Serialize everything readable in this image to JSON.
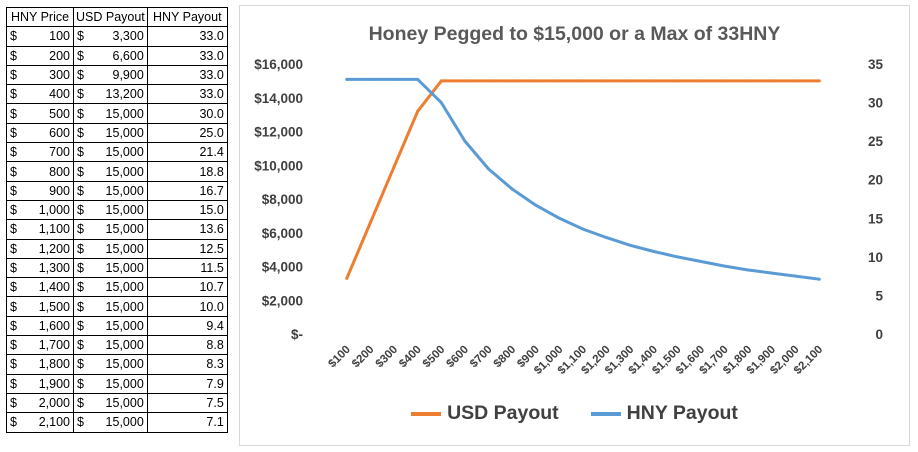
{
  "table": {
    "headers": [
      "HNY Price",
      "USD Payout",
      "HNY Payout"
    ],
    "currency_symbol": "$",
    "rows": [
      {
        "price": "100",
        "usd": "3,300",
        "hny": "33.0"
      },
      {
        "price": "200",
        "usd": "6,600",
        "hny": "33.0"
      },
      {
        "price": "300",
        "usd": "9,900",
        "hny": "33.0"
      },
      {
        "price": "400",
        "usd": "13,200",
        "hny": "33.0"
      },
      {
        "price": "500",
        "usd": "15,000",
        "hny": "30.0"
      },
      {
        "price": "600",
        "usd": "15,000",
        "hny": "25.0"
      },
      {
        "price": "700",
        "usd": "15,000",
        "hny": "21.4"
      },
      {
        "price": "800",
        "usd": "15,000",
        "hny": "18.8"
      },
      {
        "price": "900",
        "usd": "15,000",
        "hny": "16.7"
      },
      {
        "price": "1,000",
        "usd": "15,000",
        "hny": "15.0"
      },
      {
        "price": "1,100",
        "usd": "15,000",
        "hny": "13.6"
      },
      {
        "price": "1,200",
        "usd": "15,000",
        "hny": "12.5"
      },
      {
        "price": "1,300",
        "usd": "15,000",
        "hny": "11.5"
      },
      {
        "price": "1,400",
        "usd": "15,000",
        "hny": "10.7"
      },
      {
        "price": "1,500",
        "usd": "15,000",
        "hny": "10.0"
      },
      {
        "price": "1,600",
        "usd": "15,000",
        "hny": "9.4"
      },
      {
        "price": "1,700",
        "usd": "15,000",
        "hny": "8.8"
      },
      {
        "price": "1,800",
        "usd": "15,000",
        "hny": "8.3"
      },
      {
        "price": "1,900",
        "usd": "15,000",
        "hny": "7.9"
      },
      {
        "price": "2,000",
        "usd": "15,000",
        "hny": "7.5"
      },
      {
        "price": "2,100",
        "usd": "15,000",
        "hny": "7.1"
      }
    ]
  },
  "chart_data": {
    "type": "line",
    "title": "Honey Pegged to $15,000 or a Max of 33HNY",
    "categories": [
      "$100",
      "$200",
      "$300",
      "$400",
      "$500",
      "$600",
      "$700",
      "$800",
      "$900",
      "$1,000",
      "$1,100",
      "$1,200",
      "$1,300",
      "$1,400",
      "$1,500",
      "$1,600",
      "$1,700",
      "$1,800",
      "$1,900",
      "$2,000",
      "$2,100"
    ],
    "series": [
      {
        "name": "USD Payout",
        "axis": "left",
        "color": "#ed7d31",
        "values": [
          3300,
          6600,
          9900,
          13200,
          15000,
          15000,
          15000,
          15000,
          15000,
          15000,
          15000,
          15000,
          15000,
          15000,
          15000,
          15000,
          15000,
          15000,
          15000,
          15000,
          15000
        ]
      },
      {
        "name": "HNY Payout",
        "axis": "right",
        "color": "#5b9bd5",
        "values": [
          33.0,
          33.0,
          33.0,
          33.0,
          30.0,
          25.0,
          21.4,
          18.8,
          16.7,
          15.0,
          13.6,
          12.5,
          11.5,
          10.7,
          10.0,
          9.4,
          8.8,
          8.3,
          7.9,
          7.5,
          7.1
        ]
      }
    ],
    "y_left": {
      "min": 0,
      "max": 16000,
      "ticks": [
        {
          "v": 0,
          "label": "$-"
        },
        {
          "v": 2000,
          "label": "$2,000"
        },
        {
          "v": 4000,
          "label": "$4,000"
        },
        {
          "v": 6000,
          "label": "$6,000"
        },
        {
          "v": 8000,
          "label": "$8,000"
        },
        {
          "v": 10000,
          "label": "$10,000"
        },
        {
          "v": 12000,
          "label": "$12,000"
        },
        {
          "v": 14000,
          "label": "$14,000"
        },
        {
          "v": 16000,
          "label": "$16,000"
        }
      ]
    },
    "y_right": {
      "min": 0,
      "max": 35,
      "ticks": [
        {
          "v": 0,
          "label": "0"
        },
        {
          "v": 5,
          "label": "5"
        },
        {
          "v": 10,
          "label": "10"
        },
        {
          "v": 15,
          "label": "15"
        },
        {
          "v": 20,
          "label": "20"
        },
        {
          "v": 25,
          "label": "25"
        },
        {
          "v": 30,
          "label": "30"
        },
        {
          "v": 35,
          "label": "35"
        }
      ]
    },
    "grid": false,
    "legend_position": "bottom"
  }
}
